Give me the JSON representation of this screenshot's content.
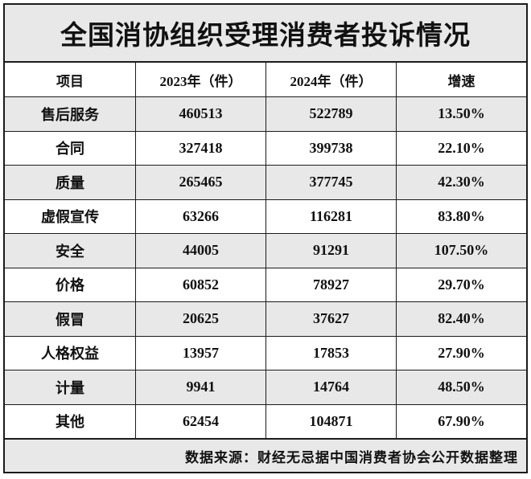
{
  "title": "全国消协组织受理消费者投诉情况",
  "chart_data": {
    "type": "table",
    "title": "全国消协组织受理消费者投诉情况",
    "columns": [
      "项目",
      "2023年（件）",
      "2024年（件）",
      "增速"
    ],
    "rows": [
      {
        "item": "售后服务",
        "v2023": 460513,
        "v2024": 522789,
        "growth": "13.50%"
      },
      {
        "item": "合同",
        "v2023": 327418,
        "v2024": 399738,
        "growth": "22.10%"
      },
      {
        "item": "质量",
        "v2023": 265465,
        "v2024": 377745,
        "growth": "42.30%"
      },
      {
        "item": "虚假宣传",
        "v2023": 63266,
        "v2024": 116281,
        "growth": "83.80%"
      },
      {
        "item": "安全",
        "v2023": 44005,
        "v2024": 91291,
        "growth": "107.50%"
      },
      {
        "item": "价格",
        "v2023": 60852,
        "v2024": 78927,
        "growth": "29.70%"
      },
      {
        "item": "假冒",
        "v2023": 20625,
        "v2024": 37627,
        "growth": "82.40%"
      },
      {
        "item": "人格权益",
        "v2023": 13957,
        "v2024": 17853,
        "growth": "27.90%"
      },
      {
        "item": "计量",
        "v2023": 9941,
        "v2024": 14764,
        "growth": "48.50%"
      },
      {
        "item": "其他",
        "v2023": 62454,
        "v2024": 104871,
        "growth": "67.90%"
      }
    ],
    "source_note": "数据来源：财经无忌据中国消费者协会公开数据整理",
    "layout": {
      "shaded_rows": "odd rows starting with first data row",
      "grid": "full black borders"
    }
  },
  "colors": {
    "shaded_row": "#e8e8e8",
    "border": "#1b1b1b",
    "text": "#111111",
    "background": "#ffffff"
  }
}
